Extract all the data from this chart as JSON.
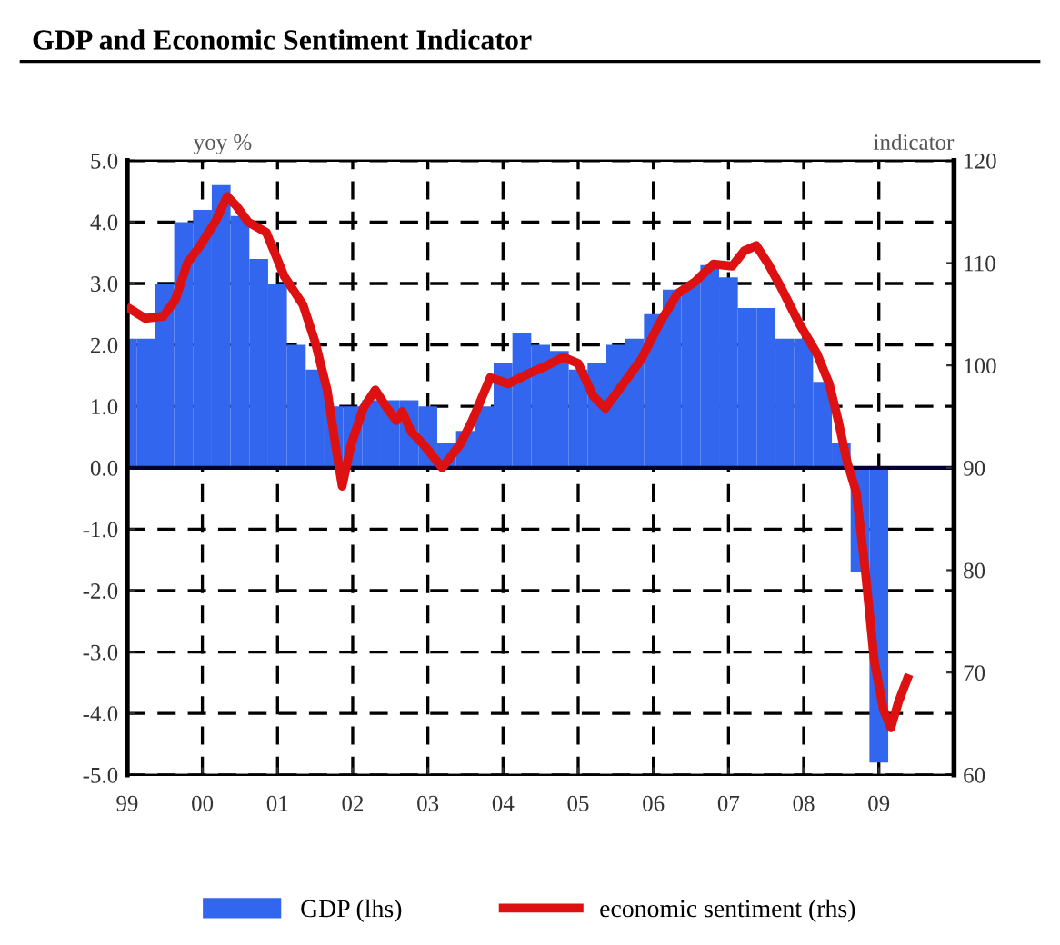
{
  "chart_data": {
    "type": "bar",
    "title": "GDP and Economic Sentiment Indicator",
    "ylabel": "yoy %",
    "y2label": "indicator",
    "xlim": [
      1999,
      2010
    ],
    "xticks": [
      {
        "value": 1999,
        "label": "99"
      },
      {
        "value": 2000,
        "label": "00"
      },
      {
        "value": 2001,
        "label": "01"
      },
      {
        "value": 2002,
        "label": "02"
      },
      {
        "value": 2003,
        "label": "03"
      },
      {
        "value": 2004,
        "label": "04"
      },
      {
        "value": 2005,
        "label": "05"
      },
      {
        "value": 2006,
        "label": "06"
      },
      {
        "value": 2007,
        "label": "07"
      },
      {
        "value": 2008,
        "label": "08"
      },
      {
        "value": 2009,
        "label": "09"
      }
    ],
    "ylim": [
      -5,
      5
    ],
    "yticks": [
      {
        "value": -5,
        "label": "-5.0"
      },
      {
        "value": -4,
        "label": "-4.0"
      },
      {
        "value": -3,
        "label": "-3.0"
      },
      {
        "value": -2,
        "label": "-2.0"
      },
      {
        "value": -1,
        "label": "-1.0"
      },
      {
        "value": 0,
        "label": "0.0"
      },
      {
        "value": 1,
        "label": "1.0"
      },
      {
        "value": 2,
        "label": "2.0"
      },
      {
        "value": 3,
        "label": "3.0"
      },
      {
        "value": 4,
        "label": "4.0"
      },
      {
        "value": 5,
        "label": "5.0"
      }
    ],
    "y2lim": [
      60,
      120
    ],
    "y2ticks": [
      60,
      70,
      80,
      90,
      100,
      110,
      120
    ],
    "grid": true,
    "legend": "bottom",
    "series": [
      {
        "name": "GDP (lhs)",
        "color": "#3366ee",
        "x": [
          1999.0,
          1999.25,
          1999.5,
          1999.75,
          2000.0,
          2000.25,
          2000.5,
          2000.75,
          2001.0,
          2001.25,
          2001.5,
          2001.75,
          2002.0,
          2002.25,
          2002.5,
          2002.75,
          2003.0,
          2003.25,
          2003.5,
          2003.75,
          2004.0,
          2004.25,
          2004.5,
          2004.75,
          2005.0,
          2005.25,
          2005.5,
          2005.75,
          2006.0,
          2006.25,
          2006.5,
          2006.75,
          2007.0,
          2007.25,
          2007.5,
          2007.75,
          2008.0,
          2008.25,
          2008.5,
          2008.75,
          2009.0
        ],
        "values": [
          2.1,
          2.1,
          3.0,
          4.0,
          4.2,
          4.6,
          4.1,
          3.4,
          3.0,
          2.0,
          1.6,
          1.0,
          1.0,
          1.1,
          1.1,
          1.1,
          1.0,
          0.4,
          0.6,
          1.0,
          1.7,
          2.2,
          2.0,
          1.9,
          1.6,
          1.7,
          2.0,
          2.1,
          2.5,
          2.9,
          3.0,
          3.3,
          3.1,
          2.6,
          2.6,
          2.1,
          2.1,
          1.4,
          0.4,
          -1.7,
          -4.8
        ]
      },
      {
        "name": "economic sentiment (rhs)",
        "type": "line",
        "axis": "y2",
        "color": "#dd1111",
        "x": [
          1999.04,
          1999.24,
          1999.48,
          1999.64,
          1999.8,
          1999.97,
          2000.17,
          2000.33,
          2000.45,
          2000.61,
          2000.85,
          2001.09,
          2001.34,
          2001.5,
          2001.66,
          2001.78,
          2001.86,
          2001.98,
          2002.14,
          2002.3,
          2002.46,
          2002.58,
          2002.66,
          2002.78,
          2002.94,
          2003.19,
          2003.43,
          2003.59,
          2003.83,
          2004.07,
          2004.31,
          2004.56,
          2004.8,
          2005.0,
          2005.2,
          2005.36,
          2005.6,
          2005.84,
          2006.08,
          2006.32,
          2006.56,
          2006.8,
          2007.05,
          2007.21,
          2007.37,
          2007.53,
          2007.7,
          2007.94,
          2008.18,
          2008.34,
          2008.46,
          2008.58,
          2008.7,
          2008.82,
          2008.94,
          2009.06,
          2009.16,
          2009.26,
          2009.38
        ],
        "values": [
          105.5,
          104.6,
          104.8,
          106.4,
          110,
          111.7,
          114,
          116.5,
          115.6,
          114,
          113,
          108.7,
          105.9,
          102.3,
          97.6,
          91.8,
          88.2,
          92.3,
          95.8,
          97.6,
          95.8,
          94.6,
          95.5,
          93.5,
          92.3,
          90,
          92.3,
          94.6,
          98.8,
          98.2,
          99.1,
          99.9,
          100.8,
          100.2,
          97,
          95.8,
          98.2,
          100.6,
          104.1,
          107,
          108.2,
          109.9,
          109.7,
          111.2,
          111.7,
          109.9,
          107.6,
          104.1,
          101.1,
          98.2,
          94.6,
          90.5,
          87.6,
          79.9,
          71.1,
          66.4,
          64.6,
          67.1,
          69.4
        ]
      }
    ]
  }
}
